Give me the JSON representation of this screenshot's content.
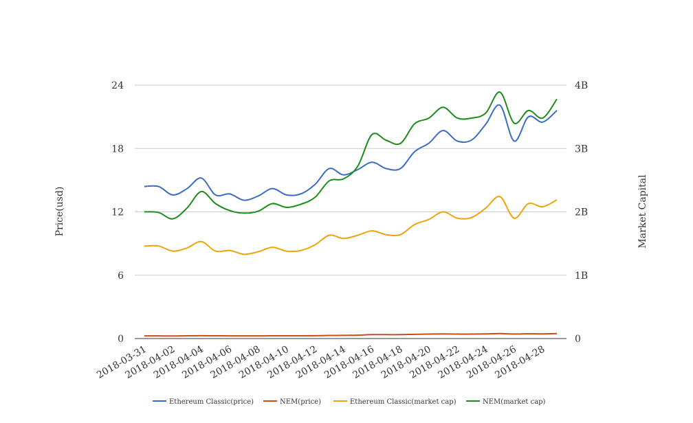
{
  "chart_data": {
    "type": "line",
    "x": [
      "2018-03-31",
      "2018-04-01",
      "2018-04-02",
      "2018-04-03",
      "2018-04-04",
      "2018-04-05",
      "2018-04-06",
      "2018-04-07",
      "2018-04-08",
      "2018-04-09",
      "2018-04-10",
      "2018-04-11",
      "2018-04-12",
      "2018-04-13",
      "2018-04-14",
      "2018-04-15",
      "2018-04-16",
      "2018-04-17",
      "2018-04-18",
      "2018-04-19",
      "2018-04-20",
      "2018-04-21",
      "2018-04-22",
      "2018-04-23",
      "2018-04-24",
      "2018-04-25",
      "2018-04-26",
      "2018-04-27",
      "2018-04-28",
      "2018-04-29"
    ],
    "x_tick_labels": [
      "2018-03-31",
      "2018-04-02",
      "2018-04-04",
      "2018-04-06",
      "2018-04-08",
      "2018-04-10",
      "2018-04-12",
      "2018-04-14",
      "2018-04-16",
      "2018-04-18",
      "2018-04-20",
      "2018-04-22",
      "2018-04-24",
      "2018-04-26",
      "2018-04-28"
    ],
    "ylabel": "Price(usd)",
    "y2label": "Market Capital",
    "ylim": [
      0,
      24
    ],
    "y_ticks": [
      "0",
      "6",
      "12",
      "18",
      "24"
    ],
    "y2lim": [
      0,
      4000000000
    ],
    "y2_ticks": [
      "0",
      "1B",
      "2B",
      "3B",
      "4B"
    ],
    "grid": true,
    "legend_position": "bottom",
    "series": [
      {
        "name": "Ethereum Classic(price)",
        "axis": "left",
        "color": "#3a6bc4",
        "values": [
          14.4,
          14.4,
          13.6,
          14.2,
          15.2,
          13.6,
          13.7,
          13.1,
          13.5,
          14.2,
          13.6,
          13.7,
          14.6,
          16.1,
          15.5,
          16.0,
          16.7,
          16.1,
          16.1,
          17.7,
          18.5,
          19.7,
          18.7,
          18.8,
          20.3,
          22.1,
          18.7,
          21.0,
          20.5,
          21.6
        ]
      },
      {
        "name": "NEM(price)",
        "axis": "left",
        "color": "#cc4a1a",
        "values": [
          0.25,
          0.25,
          0.24,
          0.26,
          0.27,
          0.26,
          0.25,
          0.25,
          0.25,
          0.26,
          0.26,
          0.26,
          0.27,
          0.29,
          0.3,
          0.32,
          0.37,
          0.37,
          0.37,
          0.4,
          0.42,
          0.44,
          0.42,
          0.42,
          0.44,
          0.47,
          0.43,
          0.45,
          0.44,
          0.47
        ]
      },
      {
        "name": "Ethereum Classic(market cap)",
        "axis": "right",
        "color": "#f0a30a",
        "values": [
          1460000000,
          1460000000,
          1380000000,
          1430000000,
          1530000000,
          1380000000,
          1390000000,
          1330000000,
          1370000000,
          1440000000,
          1380000000,
          1390000000,
          1480000000,
          1630000000,
          1580000000,
          1630000000,
          1700000000,
          1640000000,
          1640000000,
          1800000000,
          1880000000,
          2000000000,
          1900000000,
          1910000000,
          2060000000,
          2240000000,
          1900000000,
          2130000000,
          2080000000,
          2190000000
        ]
      },
      {
        "name": "NEM(market cap)",
        "axis": "right",
        "color": "#1a8c1a",
        "values": [
          2000000000,
          1990000000,
          1890000000,
          2060000000,
          2320000000,
          2130000000,
          2020000000,
          1980000000,
          2010000000,
          2130000000,
          2070000000,
          2120000000,
          2230000000,
          2490000000,
          2520000000,
          2720000000,
          3220000000,
          3130000000,
          3080000000,
          3390000000,
          3480000000,
          3650000000,
          3480000000,
          3480000000,
          3560000000,
          3890000000,
          3400000000,
          3600000000,
          3480000000,
          3780000000
        ]
      }
    ]
  }
}
